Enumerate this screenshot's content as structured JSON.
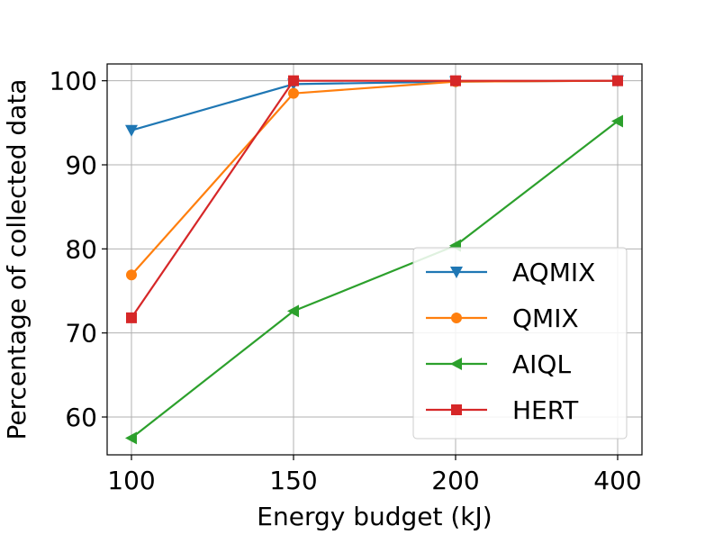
{
  "chart_data": {
    "type": "line",
    "title": "",
    "xlabel": "Energy budget (kJ)",
    "ylabel": "Percentage of collected data",
    "categories": [
      "100",
      "150",
      "200",
      "400"
    ],
    "ylim": [
      55.5,
      102
    ],
    "yticks": [
      60,
      70,
      80,
      90,
      100
    ],
    "grid": true,
    "legend_position": "center-right",
    "series": [
      {
        "name": "AQMIX",
        "color": "#1f77b4",
        "marker": "triangle-down",
        "values": [
          94.1,
          99.6,
          99.9,
          100.0
        ]
      },
      {
        "name": "QMIX",
        "color": "#ff7f0e",
        "marker": "circle",
        "values": [
          76.9,
          98.5,
          99.9,
          100.0
        ]
      },
      {
        "name": "AIQL",
        "color": "#2ca02c",
        "marker": "triangle-left",
        "values": [
          57.5,
          72.6,
          80.4,
          95.2
        ]
      },
      {
        "name": "HERT",
        "color": "#d62728",
        "marker": "square",
        "values": [
          71.8,
          100.0,
          100.0,
          100.0
        ]
      }
    ]
  }
}
